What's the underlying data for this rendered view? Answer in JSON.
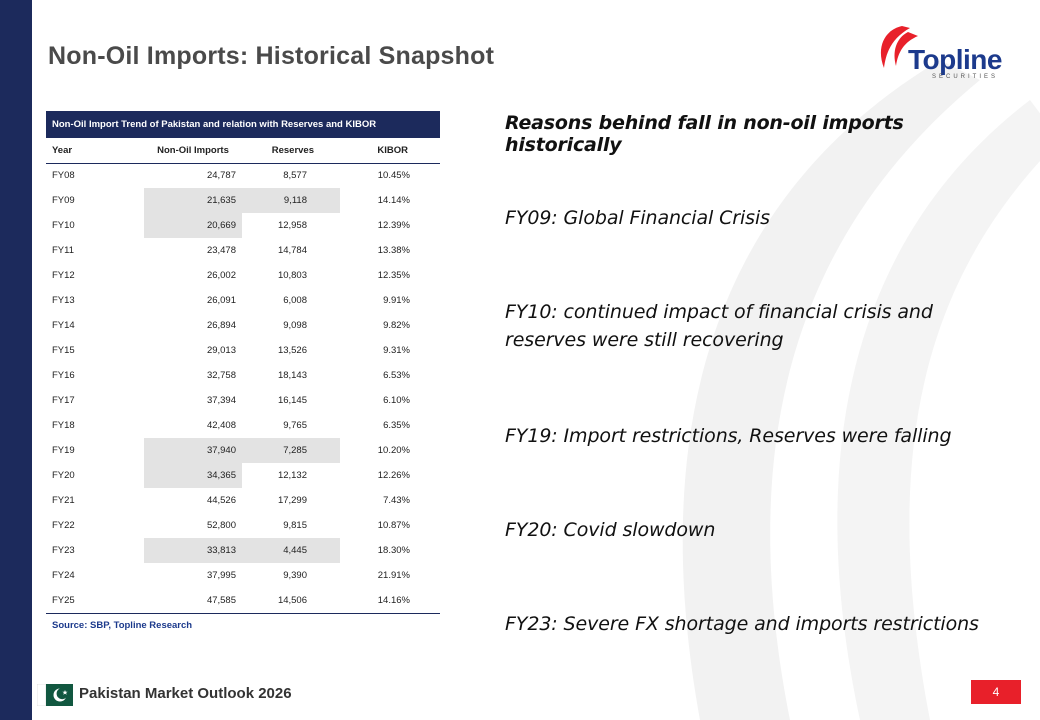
{
  "slide": {
    "title": "Non-Oil Imports: Historical Snapshot",
    "brand_color": "#1c2a5c",
    "accent_color": "#e8202a"
  },
  "logo": {
    "word": "Topline",
    "sub": "SECURITIES"
  },
  "table": {
    "title": "Non-Oil Import Trend of Pakistan and relation with Reserves and KIBOR",
    "headers": [
      "Year",
      "Non-Oil Imports",
      "Reserves",
      "KIBOR"
    ],
    "rows": [
      {
        "year": "FY08",
        "imports": "24,787",
        "reserves": "8,577",
        "kibor": "10.45%",
        "highlight": false
      },
      {
        "year": "FY09",
        "imports": "21,635",
        "reserves": "9,118",
        "kibor": "14.14%",
        "highlight": true
      },
      {
        "year": "FY10",
        "imports": "20,669",
        "reserves": "12,958",
        "kibor": "12.39%",
        "highlight": "imports"
      },
      {
        "year": "FY11",
        "imports": "23,478",
        "reserves": "14,784",
        "kibor": "13.38%",
        "highlight": false
      },
      {
        "year": "FY12",
        "imports": "26,002",
        "reserves": "10,803",
        "kibor": "12.35%",
        "highlight": false
      },
      {
        "year": "FY13",
        "imports": "26,091",
        "reserves": "6,008",
        "kibor": "9.91%",
        "highlight": false
      },
      {
        "year": "FY14",
        "imports": "26,894",
        "reserves": "9,098",
        "kibor": "9.82%",
        "highlight": false
      },
      {
        "year": "FY15",
        "imports": "29,013",
        "reserves": "13,526",
        "kibor": "9.31%",
        "highlight": false
      },
      {
        "year": "FY16",
        "imports": "32,758",
        "reserves": "18,143",
        "kibor": "6.53%",
        "highlight": false
      },
      {
        "year": "FY17",
        "imports": "37,394",
        "reserves": "16,145",
        "kibor": "6.10%",
        "highlight": false
      },
      {
        "year": "FY18",
        "imports": "42,408",
        "reserves": "9,765",
        "kibor": "6.35%",
        "highlight": false
      },
      {
        "year": "FY19",
        "imports": "37,940",
        "reserves": "7,285",
        "kibor": "10.20%",
        "highlight": true
      },
      {
        "year": "FY20",
        "imports": "34,365",
        "reserves": "12,132",
        "kibor": "12.26%",
        "highlight": "imports"
      },
      {
        "year": "FY21",
        "imports": "44,526",
        "reserves": "17,299",
        "kibor": "7.43%",
        "highlight": false
      },
      {
        "year": "FY22",
        "imports": "52,800",
        "reserves": "9,815",
        "kibor": "10.87%",
        "highlight": false
      },
      {
        "year": "FY23",
        "imports": "33,813",
        "reserves": "4,445",
        "kibor": "18.30%",
        "highlight": true
      },
      {
        "year": "FY24",
        "imports": "37,995",
        "reserves": "9,390",
        "kibor": "21.91%",
        "highlight": false
      },
      {
        "year": "FY25",
        "imports": "47,585",
        "reserves": "14,506",
        "kibor": "14.16%",
        "highlight": false
      }
    ],
    "source": "Source: SBP, Topline Research"
  },
  "reasons": {
    "heading": "Reasons behind fall in non-oil imports historically",
    "items": [
      "FY09: Global Financial Crisis",
      "FY10: continued impact of financial crisis and reserves were still recovering",
      "FY19: Import restrictions, Reserves were falling",
      "FY20: Covid slowdown",
      "FY23: Severe FX shortage and imports restrictions"
    ]
  },
  "footer": {
    "label": "Pakistan Market Outlook 2026",
    "page": "4"
  }
}
